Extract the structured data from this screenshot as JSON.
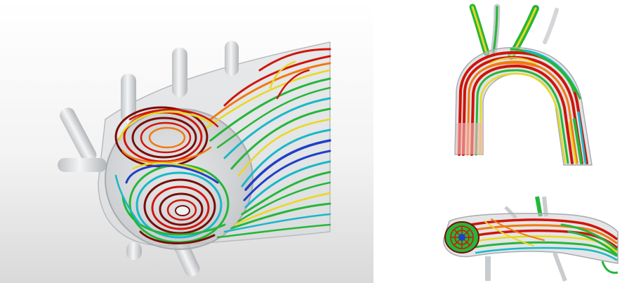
{
  "palette": {
    "red": "#d0140a",
    "dark_red": "#7a0d08",
    "orange": "#f07a12",
    "yellow": "#e8d820",
    "green": "#25b63a",
    "cyan": "#18b8c8",
    "blue": "#1f3fc8",
    "vessel_grey": "#c9cccf"
  },
  "panels": [
    {
      "name": "aortic-arch-cross-section-vortex",
      "icon": "vortex-streamline-image"
    },
    {
      "name": "aortic-arch-side-view",
      "icon": "arch-streamline-image"
    },
    {
      "name": "aortic-arch-top-view",
      "icon": "arch-top-streamline-image"
    }
  ]
}
